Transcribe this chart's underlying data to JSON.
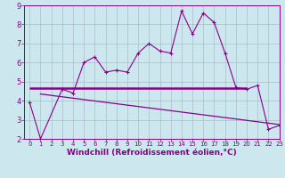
{
  "x": [
    0,
    1,
    2,
    3,
    4,
    5,
    6,
    7,
    8,
    9,
    10,
    11,
    12,
    13,
    14,
    15,
    16,
    17,
    18,
    19,
    20,
    21,
    22,
    23
  ],
  "line1": [
    3.9,
    2.0,
    null,
    4.6,
    4.4,
    6.0,
    6.3,
    5.5,
    5.6,
    5.5,
    6.5,
    7.0,
    6.6,
    6.5,
    8.7,
    7.5,
    8.6,
    8.1,
    6.5,
    4.7,
    4.6,
    4.8,
    2.5,
    2.7
  ],
  "line2_x": [
    0,
    20
  ],
  "line2_y": [
    4.65,
    4.65
  ],
  "line3_x": [
    1,
    23
  ],
  "line3_y": [
    4.35,
    2.75
  ],
  "xlim": [
    -0.5,
    23
  ],
  "ylim": [
    2,
    9
  ],
  "yticks": [
    2,
    3,
    4,
    5,
    6,
    7,
    8,
    9
  ],
  "xticks": [
    0,
    1,
    2,
    3,
    4,
    5,
    6,
    7,
    8,
    9,
    10,
    11,
    12,
    13,
    14,
    15,
    16,
    17,
    18,
    19,
    20,
    21,
    22,
    23
  ],
  "xlabel": "Windchill (Refroidissement éolien,°C)",
  "line_color": "#880088",
  "background_color": "#cce8ee",
  "grid_color": "#aabbcc",
  "xlabel_fontsize": 6.5,
  "tick_fontsize_x": 5.0,
  "tick_fontsize_y": 6.0,
  "line1_lw": 0.8,
  "line2_lw": 1.8,
  "line3_lw": 0.9,
  "marker_size": 2.5
}
